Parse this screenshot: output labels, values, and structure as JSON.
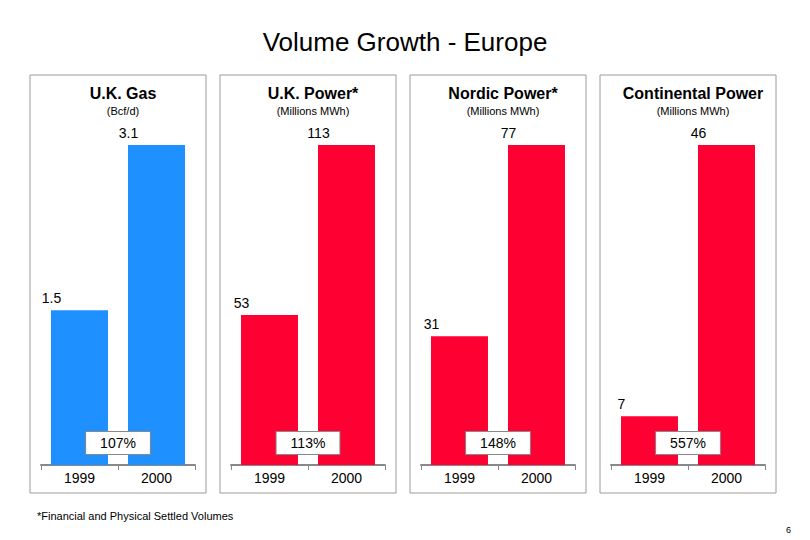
{
  "title": "Volume Growth - Europe",
  "footnote": "*Financial and Physical Settled Volumes",
  "page_number": 6,
  "chart_data": [
    {
      "type": "bar",
      "title": "U.K. Gas",
      "subtitle": "(Bcf/d)",
      "categories": [
        "1999",
        "2000"
      ],
      "values": [
        1.5,
        3.1
      ],
      "color": "#1e90ff",
      "ylim": [
        0,
        3.1
      ],
      "grid": false,
      "data_labels": true,
      "tick_labels": "x",
      "annotation": "107%"
    },
    {
      "type": "bar",
      "title": "U.K. Power*",
      "subtitle": "(Millions MWh)",
      "categories": [
        "1999",
        "2000"
      ],
      "values": [
        53,
        113
      ],
      "color": "#ff0033",
      "ylim": [
        0,
        113
      ],
      "grid": false,
      "data_labels": true,
      "tick_labels": "x",
      "annotation": "113%"
    },
    {
      "type": "bar",
      "title": "Nordic Power*",
      "subtitle": "(Millions MWh)",
      "categories": [
        "1999",
        "2000"
      ],
      "values": [
        31,
        77
      ],
      "color": "#ff0033",
      "ylim": [
        0,
        77
      ],
      "grid": false,
      "data_labels": true,
      "tick_labels": "x",
      "annotation": "148%"
    },
    {
      "type": "bar",
      "title": "Continental Power",
      "subtitle": "(Millions MWh)",
      "categories": [
        "1999",
        "2000"
      ],
      "values": [
        7,
        46
      ],
      "color": "#ff0033",
      "ylim": [
        0,
        46
      ],
      "grid": false,
      "data_labels": true,
      "tick_labels": "x",
      "annotation": "557%"
    }
  ]
}
